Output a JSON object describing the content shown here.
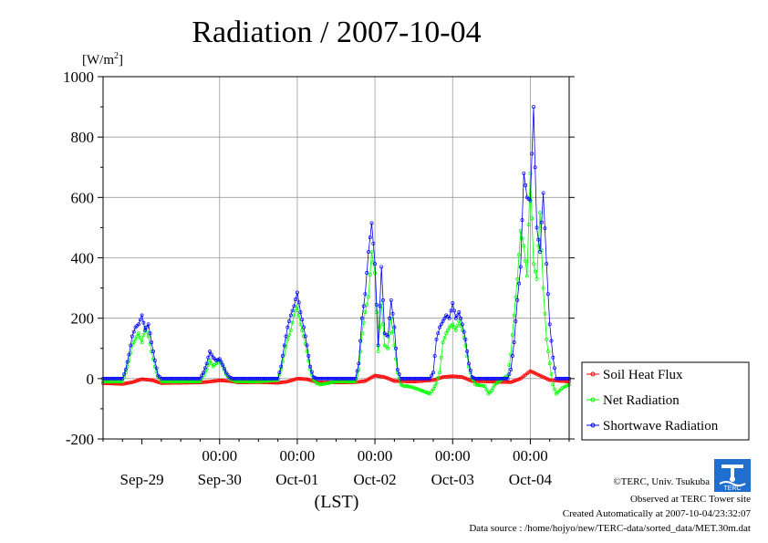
{
  "chart_data": {
    "type": "line",
    "title": "Radiation / 2007-10-04",
    "ylabel": "[W/m",
    "ylabel_sup": "2",
    "ylabel_close": "]",
    "xlabel": "(LST)",
    "ylim": [
      -200,
      1000
    ],
    "yticks": [
      "-200",
      "0",
      "200",
      "400",
      "600",
      "800",
      "1000"
    ],
    "xlim": [
      0,
      144
    ],
    "time_labels": [
      {
        "x": 36,
        "label": "00:00"
      },
      {
        "x": 60,
        "label": "00:00"
      },
      {
        "x": 84,
        "label": "00:00"
      },
      {
        "x": 108,
        "label": "00:00"
      },
      {
        "x": 132,
        "label": "00:00"
      }
    ],
    "date_labels": [
      {
        "x": 12,
        "label": "Sep-29"
      },
      {
        "x": 36,
        "label": "Sep-30"
      },
      {
        "x": 60,
        "label": "Oct-01"
      },
      {
        "x": 84,
        "label": "Oct-02"
      },
      {
        "x": 108,
        "label": "Oct-03"
      },
      {
        "x": 132,
        "label": "Oct-04"
      }
    ],
    "grid": true,
    "legend_position": "right",
    "series": [
      {
        "name": "Soil Heat Flux",
        "color": "#ff0000",
        "x": [
          0,
          6,
          9,
          12,
          15,
          18,
          24,
          30,
          33,
          36,
          39,
          42,
          48,
          54,
          57,
          60,
          63,
          66,
          72,
          78,
          81,
          84,
          87,
          90,
          96,
          102,
          105,
          108,
          111,
          114,
          120,
          126,
          129,
          132,
          135,
          138,
          144
        ],
        "y": [
          -15,
          -18,
          -12,
          -2,
          -5,
          -15,
          -14,
          -13,
          -10,
          -6,
          -8,
          -13,
          -12,
          -14,
          -10,
          0,
          -2,
          -12,
          -13,
          -12,
          -8,
          10,
          5,
          -8,
          -10,
          -5,
          5,
          8,
          5,
          -8,
          -10,
          -12,
          0,
          25,
          10,
          -5,
          -10
        ]
      },
      {
        "name": "Net Radiation",
        "color": "#00ff00",
        "x": [
          0,
          6,
          7,
          8,
          9,
          10,
          11,
          12,
          13,
          14,
          15,
          16,
          17,
          18,
          24,
          30,
          31,
          32,
          33,
          34,
          35,
          36,
          37,
          38,
          39,
          40,
          41,
          42,
          48,
          54,
          55,
          56,
          57,
          58,
          59,
          60,
          61,
          62,
          63,
          64,
          65,
          66,
          67,
          72,
          78,
          79,
          80,
          81,
          82,
          83,
          84,
          85,
          86,
          87,
          88,
          89,
          90,
          91,
          92,
          93,
          94,
          96,
          101,
          102,
          103,
          104,
          105,
          106,
          107,
          108,
          109,
          110,
          111,
          112,
          113,
          114,
          115,
          118,
          119,
          120,
          121,
          125,
          126,
          127,
          128,
          129,
          130,
          131,
          132,
          133,
          134,
          135,
          136,
          137,
          138,
          139,
          140,
          141,
          142,
          144
        ],
        "y": [
          -10,
          -10,
          20,
          60,
          110,
          130,
          150,
          120,
          170,
          140,
          90,
          40,
          5,
          -10,
          -10,
          -10,
          10,
          30,
          60,
          40,
          50,
          60,
          40,
          15,
          0,
          -5,
          -10,
          -10,
          -10,
          -5,
          30,
          80,
          130,
          160,
          210,
          240,
          180,
          140,
          90,
          30,
          -5,
          -15,
          -20,
          -10,
          -10,
          30,
          150,
          220,
          270,
          420,
          350,
          90,
          250,
          110,
          100,
          200,
          110,
          20,
          -20,
          -25,
          -25,
          -30,
          -50,
          -35,
          -15,
          20,
          120,
          150,
          170,
          180,
          160,
          190,
          160,
          110,
          40,
          0,
          -20,
          -25,
          -50,
          -40,
          -20,
          10,
          80,
          210,
          330,
          490,
          440,
          340,
          680,
          380,
          330,
          550,
          300,
          130,
          50,
          -20,
          -50,
          -40,
          -30,
          -20
        ]
      },
      {
        "name": "Shortwave Radiation",
        "color": "#0000ff",
        "x": [
          0,
          6,
          7,
          8,
          9,
          10,
          11,
          12,
          13,
          14,
          15,
          16,
          17,
          18,
          24,
          30,
          31,
          32,
          33,
          34,
          35,
          36,
          37,
          38,
          39,
          40,
          41,
          42,
          48,
          54,
          55,
          56,
          57,
          58,
          59,
          60,
          61,
          62,
          63,
          64,
          65,
          66,
          67,
          72,
          78,
          79,
          80,
          81,
          82,
          83,
          84,
          85,
          86,
          87,
          88,
          89,
          90,
          91,
          92,
          96,
          101,
          102,
          103,
          104,
          105,
          106,
          107,
          108,
          109,
          110,
          111,
          112,
          113,
          114,
          115,
          120,
          125,
          126,
          127,
          128,
          129,
          130,
          131,
          132,
          133,
          134,
          135,
          136,
          137,
          138,
          139,
          140,
          144
        ],
        "y": [
          0,
          0,
          30,
          80,
          140,
          170,
          180,
          210,
          160,
          180,
          120,
          60,
          10,
          0,
          0,
          0,
          20,
          50,
          90,
          70,
          60,
          65,
          45,
          20,
          5,
          0,
          0,
          0,
          0,
          0,
          40,
          110,
          170,
          210,
          240,
          285,
          220,
          170,
          110,
          40,
          5,
          0,
          0,
          0,
          0,
          50,
          200,
          280,
          420,
          515,
          380,
          110,
          370,
          150,
          140,
          260,
          170,
          30,
          0,
          0,
          0,
          20,
          130,
          170,
          190,
          210,
          200,
          250,
          200,
          220,
          180,
          130,
          50,
          5,
          0,
          0,
          0,
          30,
          120,
          260,
          370,
          680,
          600,
          590,
          900,
          500,
          420,
          615,
          380,
          180,
          70,
          0,
          0
        ]
      }
    ]
  },
  "credits": {
    "copyright": "©TERC, Univ. Tsukuba",
    "observed": "Observed at TERC Tower site",
    "created": "Created Automatically at 2007-10-04/23:32:07",
    "source": "Data source : /home/hojyo/new/TERC-data/sorted_data/MET.30m.dat"
  },
  "logo": {
    "text": "TERC",
    "color": "#0066cc"
  }
}
